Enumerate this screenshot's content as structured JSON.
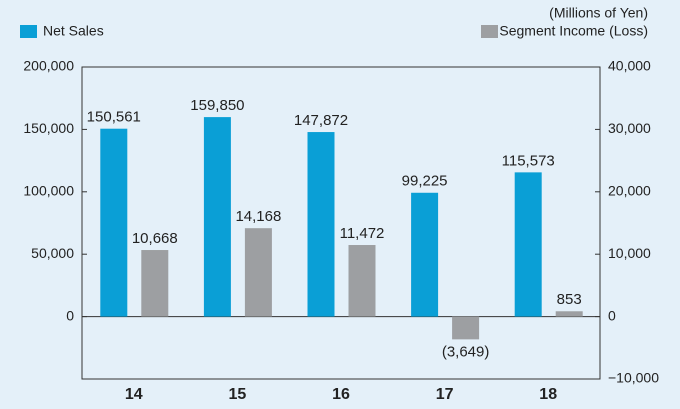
{
  "chart_data": {
    "type": "bar",
    "annotation": "(Millions of Yen)",
    "categories": [
      "14",
      "15",
      "16",
      "17",
      "18"
    ],
    "series": [
      {
        "name": "Net Sales",
        "color": "#0a9fd6",
        "axis": "y",
        "values": [
          150561,
          159850,
          147872,
          99225,
          115573
        ],
        "value_labels": [
          "150,561",
          "159,850",
          "147,872",
          "99,225",
          "115,573"
        ]
      },
      {
        "name": "Segment Income (Loss)",
        "color": "#9d9fa2",
        "axis": "y2",
        "values": [
          10668,
          14168,
          11472,
          -3649,
          853
        ],
        "value_labels": [
          "10,668",
          "14,168",
          "11,472",
          "(3,649)",
          "853"
        ]
      }
    ],
    "ylim": [
      -50000,
      200000
    ],
    "yticks": [
      0,
      {
        "value": 50000,
        "label": "50,000"
      },
      {
        "value": 100000,
        "label": "100,000"
      },
      {
        "value": 150000,
        "label": "150,000"
      },
      {
        "value": 200000,
        "label": "200,000"
      }
    ],
    "y2lim": [
      -10000,
      40000
    ],
    "y2ticks": [
      {
        "value": -10000,
        "label": "−10,000"
      },
      0,
      {
        "value": 10000,
        "label": "10,000"
      },
      {
        "value": 20000,
        "label": "20,000"
      },
      {
        "value": 30000,
        "label": "30,000"
      },
      {
        "value": 40000,
        "label": "40,000"
      }
    ]
  }
}
